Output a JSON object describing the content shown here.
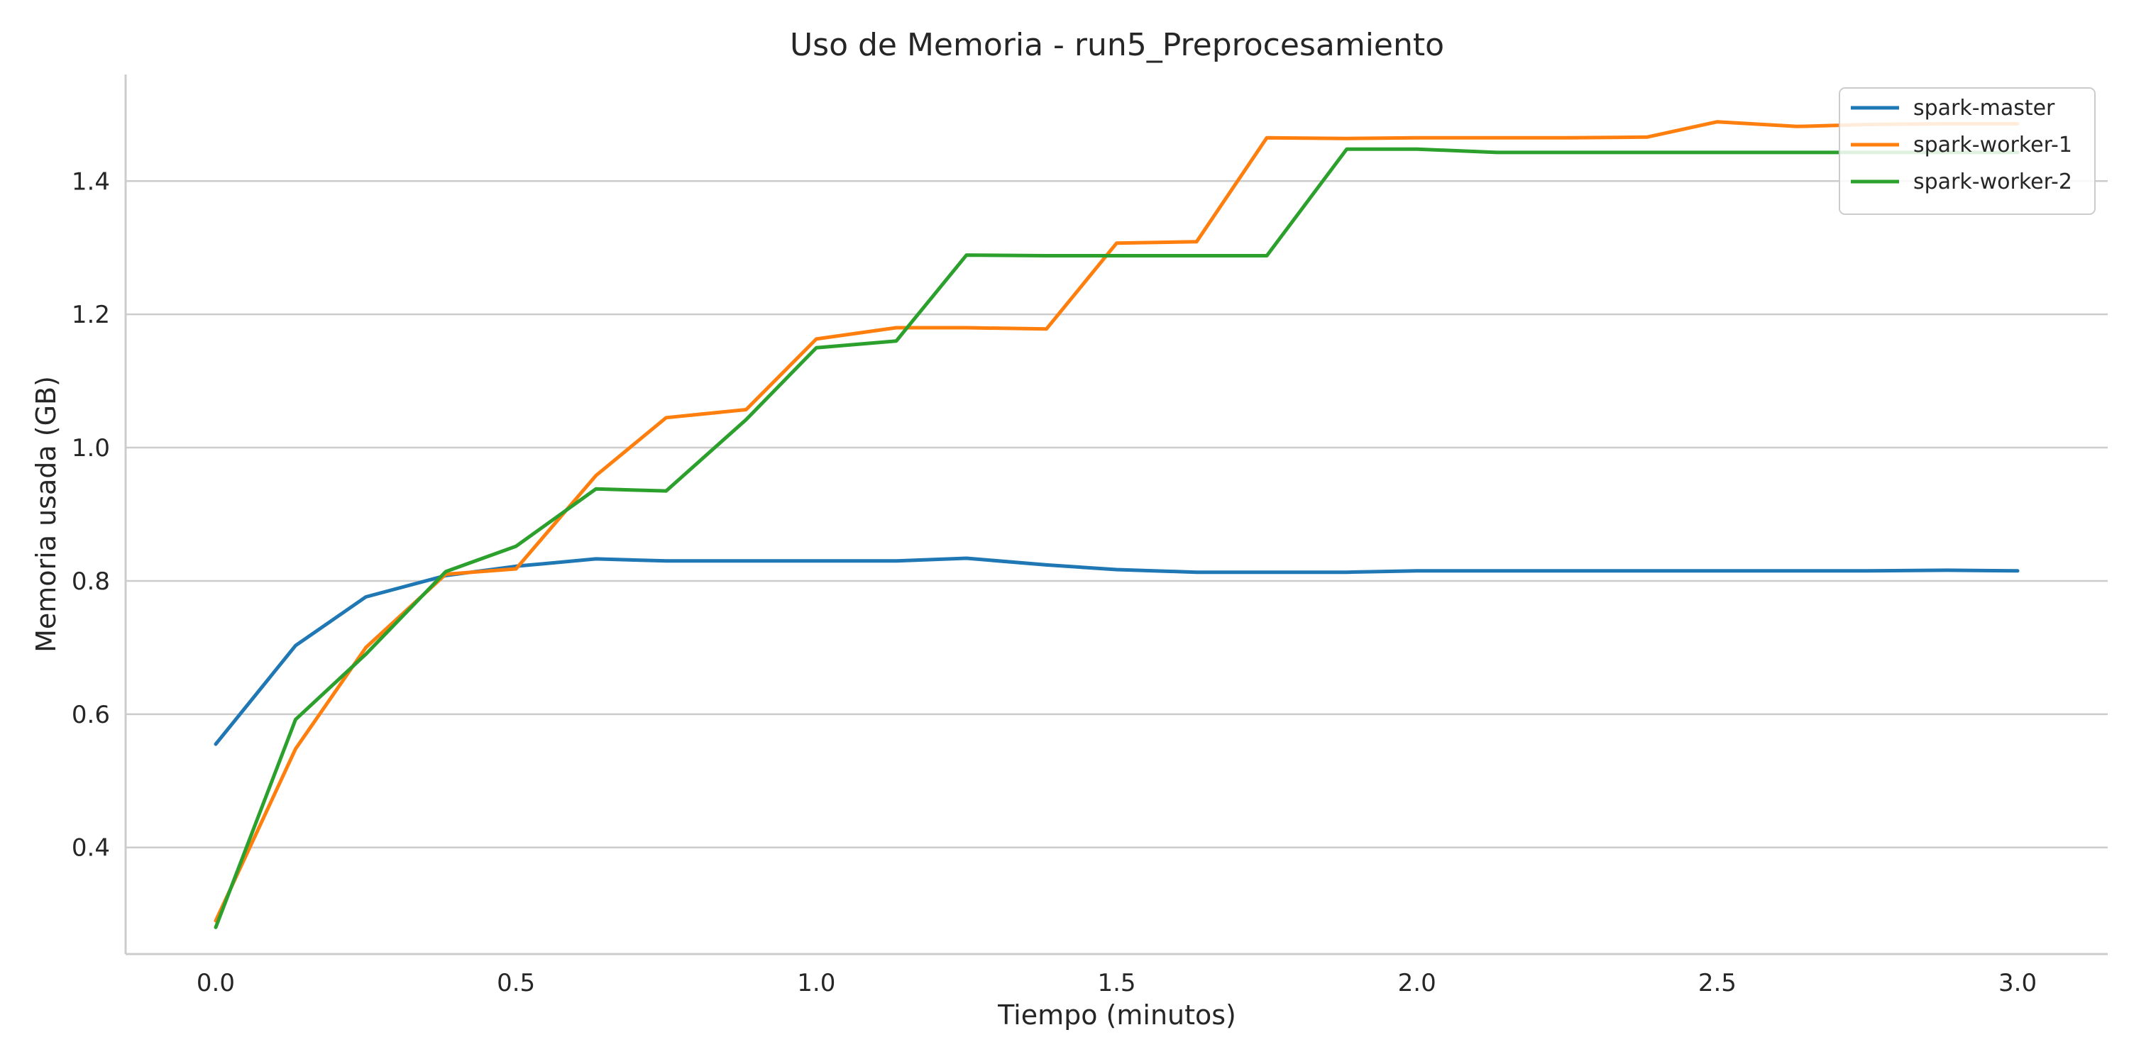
{
  "chart_data": {
    "type": "line",
    "title": "Uso de Memoria - run5_Preprocesamiento",
    "xlabel": "Tiempo (minutos)",
    "ylabel": "Memoria usada (GB)",
    "xlim": [
      -0.15,
      3.15
    ],
    "ylim": [
      0.24,
      1.56
    ],
    "xticks": [
      0.0,
      0.5,
      1.0,
      1.5,
      2.0,
      2.5,
      3.0
    ],
    "xtick_labels": [
      "0.0",
      "0.5",
      "1.0",
      "1.5",
      "2.0",
      "2.5",
      "3.0"
    ],
    "yticks": [
      0.4,
      0.6,
      0.8,
      1.0,
      1.2,
      1.4
    ],
    "ytick_labels": [
      "0.4",
      "0.6",
      "0.8",
      "1.0",
      "1.2",
      "1.4"
    ],
    "grid": "horizontal",
    "legend_position": "top-right",
    "x": [
      0.0,
      0.133,
      0.25,
      0.383,
      0.5,
      0.633,
      0.75,
      0.883,
      1.0,
      1.133,
      1.25,
      1.383,
      1.5,
      1.633,
      1.75,
      1.883,
      2.0,
      2.133,
      2.25,
      2.383,
      2.5,
      2.633,
      2.75,
      2.883,
      3.0
    ],
    "series": [
      {
        "name": "spark-master",
        "color": "#1f77b4",
        "values": [
          0.555,
          0.703,
          0.776,
          0.808,
          0.822,
          0.833,
          0.83,
          0.83,
          0.83,
          0.83,
          0.834,
          0.824,
          0.817,
          0.813,
          0.813,
          0.813,
          0.815,
          0.815,
          0.815,
          0.815,
          0.815,
          0.815,
          0.815,
          0.816,
          0.815
        ]
      },
      {
        "name": "spark-worker-1",
        "color": "#ff7f0e",
        "values": [
          0.29,
          0.548,
          0.7,
          0.81,
          0.818,
          0.958,
          1.045,
          1.057,
          1.163,
          1.18,
          1.18,
          1.178,
          1.307,
          1.309,
          1.465,
          1.464,
          1.465,
          1.465,
          1.465,
          1.466,
          1.489,
          1.482,
          1.485,
          1.486,
          1.486
        ]
      },
      {
        "name": "spark-worker-2",
        "color": "#2ca02c",
        "values": [
          0.28,
          0.592,
          0.69,
          0.814,
          0.852,
          0.938,
          0.935,
          1.042,
          1.15,
          1.16,
          1.289,
          1.288,
          1.288,
          1.288,
          1.288,
          1.448,
          1.448,
          1.443,
          1.443,
          1.443,
          1.443,
          1.443,
          1.443,
          1.443,
          1.443
        ]
      }
    ]
  }
}
